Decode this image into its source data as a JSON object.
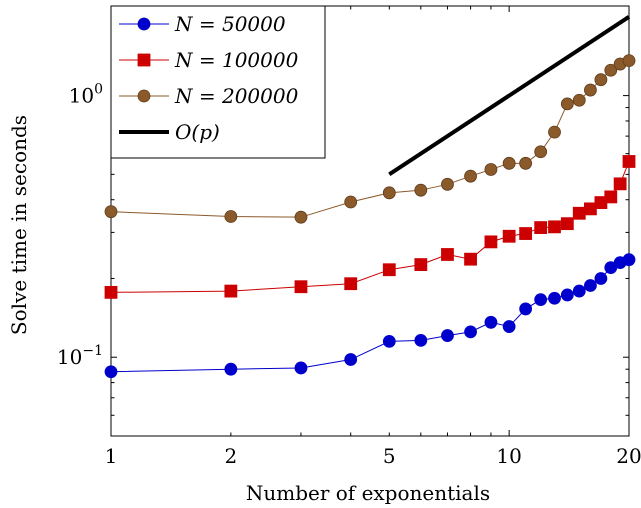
{
  "chart_data": {
    "type": "line",
    "xlabel": "Number of exponentials",
    "ylabel": "Solve time in seconds",
    "xscale": "log",
    "yscale": "log",
    "xlim": [
      1,
      20
    ],
    "ylim": [
      0.05,
      2.2
    ],
    "x_ticks": [
      {
        "value": 1,
        "label": "1"
      },
      {
        "value": 2,
        "label": "2"
      },
      {
        "value": 5,
        "label": "5"
      },
      {
        "value": 10,
        "label": "10"
      },
      {
        "value": 20,
        "label": "20"
      }
    ],
    "y_major_ticks": [
      {
        "value": 0.1,
        "base": "10",
        "exp": "−1"
      },
      {
        "value": 1,
        "base": "10",
        "exp": "0"
      }
    ],
    "legend_position": "top-left",
    "grid": false,
    "x": [
      1,
      2,
      3,
      4,
      5,
      6,
      7,
      8,
      9,
      10,
      11,
      12,
      13,
      14,
      15,
      16,
      17,
      18,
      19,
      20
    ],
    "series": [
      {
        "name": "N = 50000",
        "color": "#0000cc",
        "marker": "circle",
        "values": [
          0.088,
          0.09,
          0.091,
          0.098,
          0.115,
          0.116,
          0.121,
          0.125,
          0.136,
          0.131,
          0.153,
          0.166,
          0.168,
          0.173,
          0.179,
          0.188,
          0.2,
          0.22,
          0.23,
          0.236
        ]
      },
      {
        "name": "N = 100000",
        "color": "#cc0000",
        "marker": "square",
        "values": [
          0.177,
          0.179,
          0.186,
          0.191,
          0.216,
          0.226,
          0.247,
          0.237,
          0.276,
          0.29,
          0.297,
          0.313,
          0.315,
          0.324,
          0.355,
          0.369,
          0.39,
          0.41,
          0.46,
          0.56
        ]
      },
      {
        "name": "N = 200000",
        "color": "#8b5a2b",
        "marker": "circle",
        "values": [
          0.36,
          0.345,
          0.343,
          0.392,
          0.425,
          0.435,
          0.458,
          0.492,
          0.522,
          0.551,
          0.551,
          0.61,
          0.725,
          0.93,
          0.96,
          1.05,
          1.15,
          1.25,
          1.32,
          1.36
        ]
      }
    ],
    "reference_line": {
      "name": "O(p)",
      "color": "#000000",
      "x": [
        5,
        20
      ],
      "y": [
        0.5,
        2.0
      ]
    }
  }
}
